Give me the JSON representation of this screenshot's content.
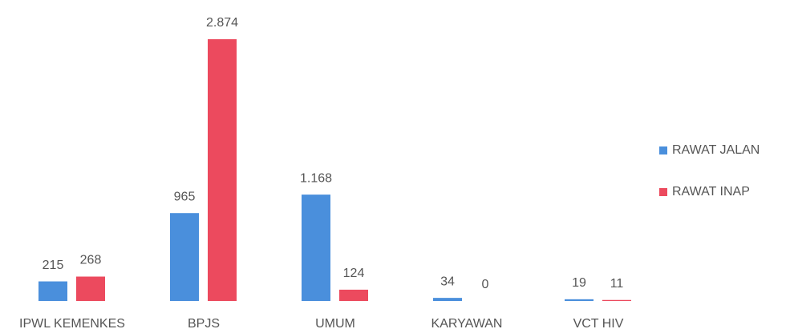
{
  "chart_data": {
    "type": "bar",
    "categories": [
      "IPWL KEMENKES",
      "BPJS",
      "UMUM",
      "KARYAWAN",
      "VCT HIV"
    ],
    "series": [
      {
        "name": "RAWAT JALAN",
        "color": "#4a8fdc",
        "values": [
          215,
          965,
          1168,
          34,
          19
        ],
        "value_labels": [
          "215",
          "965",
          "1.168",
          "34",
          "19"
        ]
      },
      {
        "name": "RAWAT INAP",
        "color": "#ec4a5e",
        "values": [
          268,
          2874,
          124,
          0,
          11
        ],
        "value_labels": [
          "268",
          "2.874",
          "124",
          "0",
          "11"
        ]
      }
    ],
    "legend": "right"
  }
}
